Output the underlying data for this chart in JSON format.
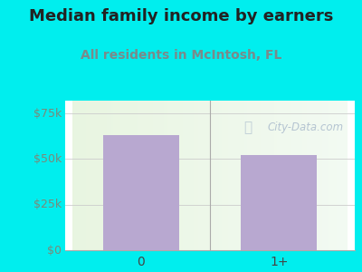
{
  "title": "Median family income by earners",
  "subtitle": "All residents in McIntosh, FL",
  "categories": [
    "0",
    "1+"
  ],
  "values": [
    63000,
    52000
  ],
  "bar_color": "#b8a8d0",
  "title_color": "#222222",
  "subtitle_color": "#7a8a8a",
  "yticks": [
    0,
    25000,
    50000,
    75000
  ],
  "ytick_labels": [
    "$0",
    "$25k",
    "$50k",
    "$75k"
  ],
  "ylim": [
    0,
    82000
  ],
  "background_outer": "#00eeee",
  "watermark": "City-Data.com",
  "watermark_color": "#aabbcc",
  "title_fontsize": 13,
  "subtitle_fontsize": 10,
  "ytick_color": "#7a8a7a",
  "xtick_color": "#444444",
  "axis_line_color": "#aaaaaa",
  "grid_color": "#cccccc",
  "divider_color": "#aaaaaa"
}
